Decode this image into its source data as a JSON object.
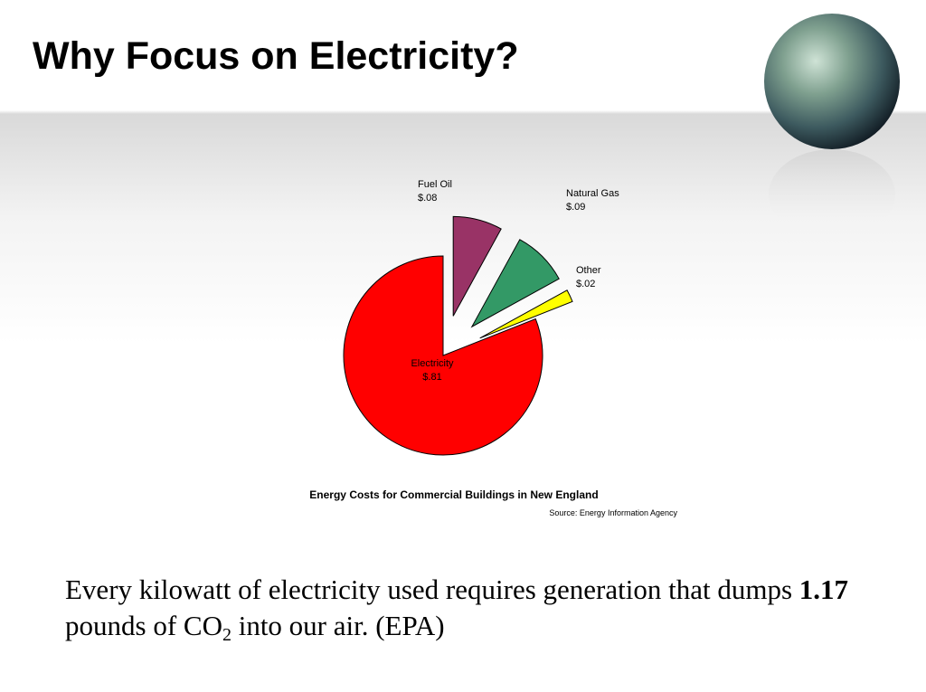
{
  "slide": {
    "title": "Why Focus on Electricity?",
    "body": [
      "Every kilowatt of electricity used requires generation that dumps ",
      "1.17",
      " pounds of CO",
      "2",
      " into our air.   (EPA)"
    ]
  },
  "chart_data": {
    "type": "pie",
    "title": "Energy Costs for Commercial Buildings in New England",
    "source": "Source: Energy Information Agency",
    "categories": [
      "Fuel Oil",
      "Natural Gas",
      "Other",
      "Electricity"
    ],
    "values": [
      0.08,
      0.09,
      0.02,
      0.81
    ],
    "value_labels": [
      "$.08",
      "$.09",
      "$.02",
      "$.81"
    ],
    "colors": [
      "#993366",
      "#339966",
      "#ffff00",
      "#ff0000"
    ]
  }
}
